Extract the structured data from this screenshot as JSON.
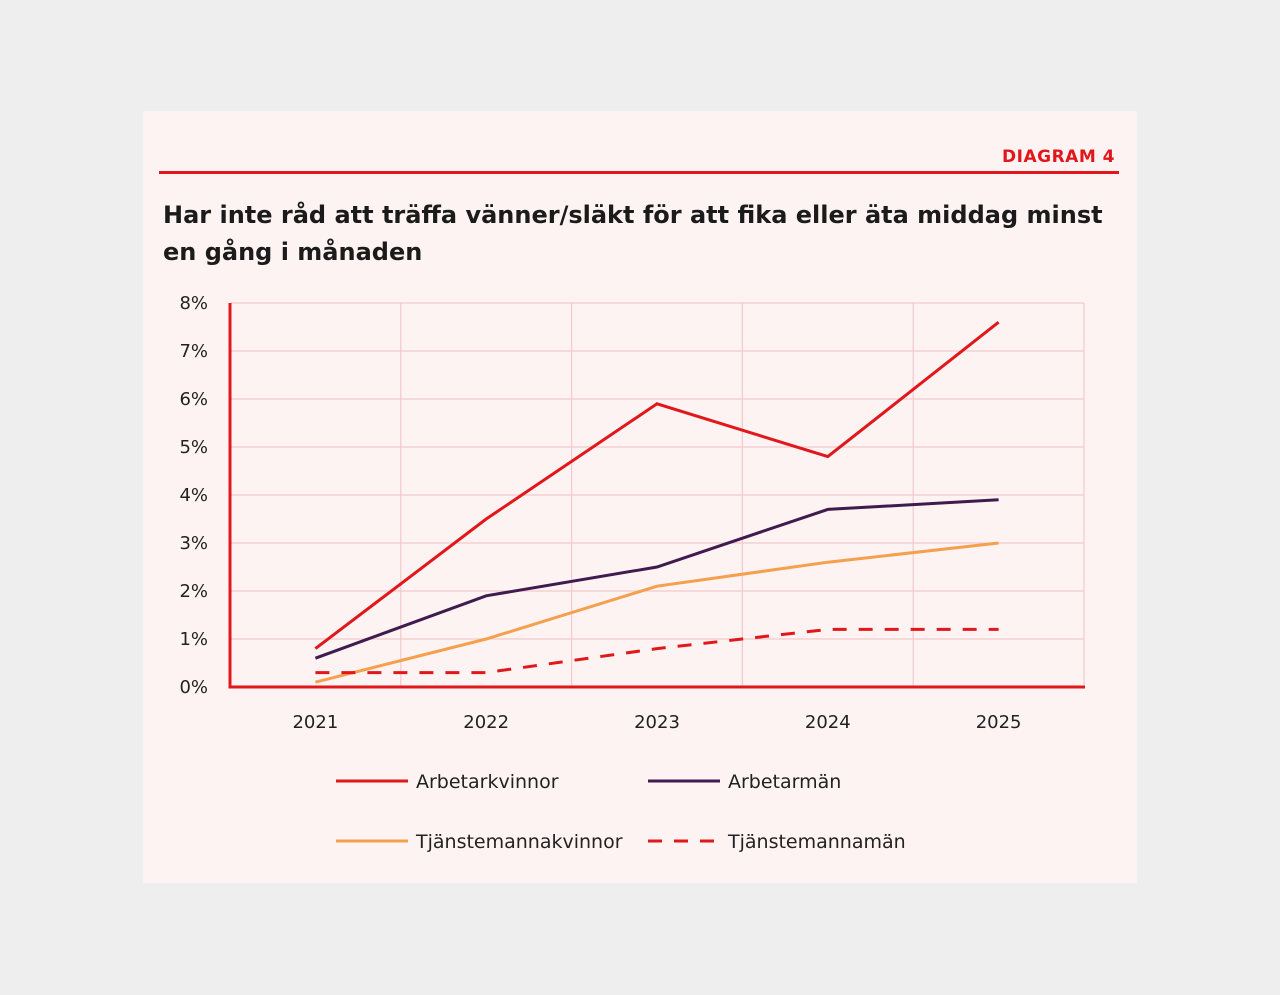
{
  "header": {
    "diagram_label": "DIAGRAM 4",
    "title": "Har inte råd att träffa vänner/släkt för att fika eller äta middag minst en gång i månaden"
  },
  "chart_data": {
    "type": "line",
    "title": "Har inte råd att träffa vänner/släkt för att fika eller äta middag minst en gång i månaden",
    "x": [
      "2021",
      "2022",
      "2023",
      "2024",
      "2025"
    ],
    "ylim": [
      0,
      8
    ],
    "yticks": [
      "0%",
      "1%",
      "2%",
      "3%",
      "4%",
      "5%",
      "6%",
      "7%",
      "8%"
    ],
    "ytick_values": [
      0,
      1,
      2,
      3,
      4,
      5,
      6,
      7,
      8
    ],
    "grid": true,
    "legend_position": "bottom",
    "series": [
      {
        "name": "Arbetarkvinnor",
        "values": [
          0.8,
          3.5,
          5.9,
          4.8,
          7.6
        ],
        "color": "#e0181b",
        "dash": false
      },
      {
        "name": "Arbetarmän",
        "values": [
          0.6,
          1.9,
          2.5,
          3.7,
          3.9
        ],
        "color": "#3f1b4e",
        "dash": false
      },
      {
        "name": "Tjänstemannakvinnor",
        "values": [
          0.1,
          1.0,
          2.1,
          2.6,
          3.0
        ],
        "color": "#f4a04e",
        "dash": false
      },
      {
        "name": "Tjänstemannamän",
        "values": [
          0.3,
          0.3,
          0.8,
          1.2,
          1.2
        ],
        "color": "#e0181b",
        "dash": true
      }
    ]
  }
}
